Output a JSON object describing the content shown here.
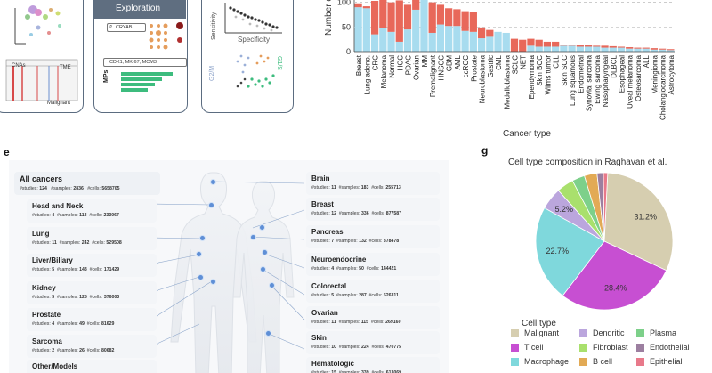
{
  "top_panels": {
    "exploration_title": "Exploration",
    "search_box_text": "CRYAB",
    "cnas_label": "CNAs",
    "tme_label": "TME",
    "malignant_label": "Malignant",
    "markers_box_text": "CDK1, MKI67, MCM3",
    "mps_label": "MPs",
    "sensitivity_label": "Sensitivity",
    "specificity_label": "Specificity",
    "g2m_label": "G2/M",
    "g1s_label": "G1/S"
  },
  "chart_data": [
    {
      "type": "bar",
      "stacked": true,
      "title": "",
      "xlabel": "Cancer type",
      "ylabel": "Number o",
      "yticks": [
        0,
        50,
        100
      ],
      "ylim": [
        0,
        112
      ],
      "categories": [
        "Breast",
        "Lung adeno.",
        "CRC",
        "Melanoma",
        "Normal",
        "HCC",
        "PDAC",
        "Ovarian",
        "MM",
        "Premalignant",
        "HNSCC",
        "GBM",
        "AML",
        "ccRCC",
        "Prostate",
        "Neuroblastoma",
        "Gastric",
        "CML",
        "Medulloblastoma",
        "SCLC",
        "NET",
        "Ependymoma",
        "Skin BCC",
        "Wilms tumor",
        "CLL",
        "Skin SCC",
        "Lung squamous",
        "Endometrial",
        "Synovial sarcoma",
        "Ewing sarcoma",
        "Nasopharyngeal",
        "DLBCL",
        "Esophageal",
        "Uveal melanoma",
        "Osteosarcoma",
        "ALL",
        "Meningioma",
        "Cholangiocarcinoma",
        "Astrocytoma"
      ],
      "series": [
        {
          "name": "blue",
          "color": "#a8dcef",
          "values": [
            90,
            88,
            35,
            48,
            40,
            20,
            45,
            85,
            108,
            38,
            55,
            52,
            52,
            42,
            40,
            27,
            30,
            40,
            38,
            0,
            0,
            12,
            10,
            10,
            10,
            12,
            12,
            10,
            10,
            10,
            8,
            8,
            8,
            6,
            6,
            6,
            4,
            4,
            3
          ]
        },
        {
          "name": "red",
          "color": "#e8685a",
          "values": [
            8,
            4,
            68,
            58,
            60,
            84,
            50,
            20,
            0,
            62,
            40,
            36,
            34,
            40,
            40,
            22,
            14,
            0,
            0,
            26,
            24,
            14,
            14,
            10,
            10,
            2,
            2,
            4,
            4,
            2,
            4,
            3,
            2,
            3,
            2,
            2,
            3,
            2,
            2
          ]
        }
      ]
    },
    {
      "type": "pie",
      "title": "Cell type composition in Raghavan et al.",
      "slices": [
        {
          "label": "Malignant",
          "value": 31.2,
          "color": "#d6ceb0",
          "text": "31.2%"
        },
        {
          "label": "T cell",
          "value": 28.4,
          "color": "#c74fd2",
          "text": "28.4%"
        },
        {
          "label": "Macrophage",
          "value": 22.7,
          "color": "#7fd8dc",
          "text": "22.7%"
        },
        {
          "label": "Dendritic",
          "value": 5.2,
          "color": "#bba6dd",
          "text": "5.2%"
        },
        {
          "label": "Plasma",
          "value": 4.0,
          "color": "#a9e06d",
          "text": ""
        },
        {
          "label": "Fibroblast",
          "value": 3.0,
          "color": "#7dd08a",
          "text": ""
        },
        {
          "label": "B cell",
          "value": 3.0,
          "color": "#e2aa55",
          "text": ""
        },
        {
          "label": "Endothelial",
          "value": 1.5,
          "color": "#9c7fa0",
          "text": ""
        },
        {
          "label": "Epithelial",
          "value": 1.0,
          "color": "#e8798a",
          "text": ""
        }
      ],
      "legend_title": "Cell type",
      "legend": [
        {
          "label": "Malignant",
          "color": "#d6ceb0"
        },
        {
          "label": "Dendritic",
          "color": "#bba6dd"
        },
        {
          "label": "Plasma",
          "color": "#7dd08a"
        },
        {
          "label": "T cell",
          "color": "#c74fd2"
        },
        {
          "label": "Fibroblast",
          "color": "#a9e06d"
        },
        {
          "label": "Endothelial",
          "color": "#9c7fa0"
        },
        {
          "label": "Macrophage",
          "color": "#7fd8dc"
        },
        {
          "label": "B cell",
          "color": "#e2aa55"
        },
        {
          "label": "Epithelial",
          "color": "#e8798a"
        }
      ]
    }
  ],
  "panel_e": {
    "tag": "e",
    "all_cancers": {
      "title": "All cancers",
      "studies": "124",
      "samples": "2836",
      "cells": "5658705"
    },
    "left": [
      {
        "title": "Head and Neck",
        "studies": "4",
        "samples": "113",
        "cells": "233067"
      },
      {
        "title": "Lung",
        "studies": "11",
        "samples": "242",
        "cells": "529508"
      },
      {
        "title": "Liver/Biliary",
        "studies": "5",
        "samples": "143",
        "cells": "171429"
      },
      {
        "title": "Kidney",
        "studies": "5",
        "samples": "125",
        "cells": "376003"
      },
      {
        "title": "Prostate",
        "studies": "4",
        "samples": "49",
        "cells": "81629"
      },
      {
        "title": "Sarcoma",
        "studies": "2",
        "samples": "26",
        "cells": "80682"
      },
      {
        "title": "Other/Models",
        "studies": "",
        "samples": "",
        "cells": ""
      }
    ],
    "right": [
      {
        "title": "Brain",
        "studies": "11",
        "samples": "183",
        "cells": "255713"
      },
      {
        "title": "Breast",
        "studies": "12",
        "samples": "336",
        "cells": "877587"
      },
      {
        "title": "Pancreas",
        "studies": "7",
        "samples": "132",
        "cells": "378478"
      },
      {
        "title": "Neuroendocrine",
        "studies": "4",
        "samples": "50",
        "cells": "144421"
      },
      {
        "title": "Colorectal",
        "studies": "5",
        "samples": "287",
        "cells": "526311"
      },
      {
        "title": "Ovarian",
        "studies": "11",
        "samples": "115",
        "cells": "269160"
      },
      {
        "title": "Skin",
        "studies": "10",
        "samples": "224",
        "cells": "470775"
      },
      {
        "title": "Hematologic",
        "studies": "15",
        "samples": "339",
        "cells": "613069"
      }
    ],
    "labels": {
      "studies": "#studies:",
      "samples": "#samples:",
      "cells": "#cells:"
    }
  },
  "panel_g": {
    "tag": "g"
  }
}
